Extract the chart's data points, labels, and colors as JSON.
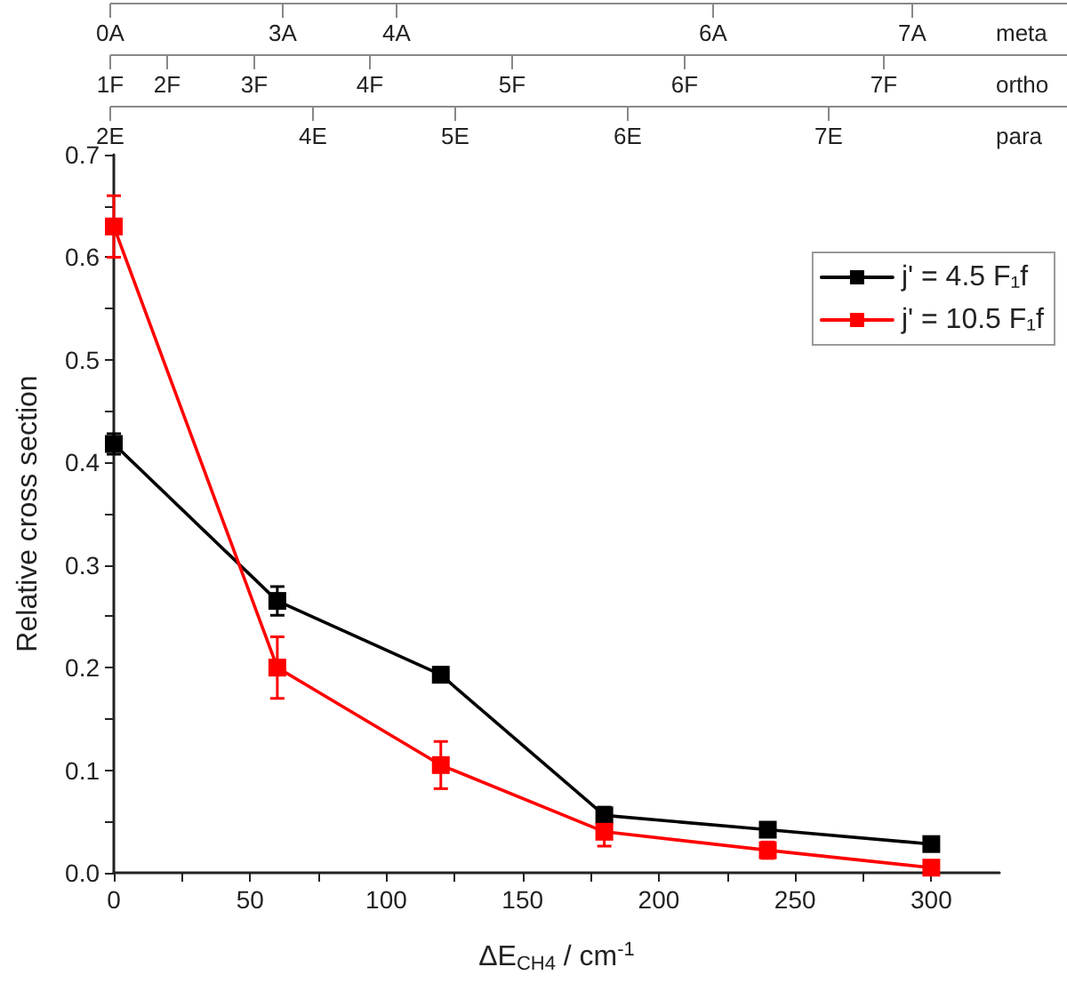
{
  "chart_data": {
    "type": "line",
    "xlabel": "ΔE$_{CH4}$ / cm$^{-1}$",
    "ylabel": "Relative cross section",
    "x": [
      0,
      60,
      120,
      180,
      240,
      300
    ],
    "series": [
      {
        "name": "j' = 4.5 F₁f",
        "color": "#000000",
        "values": [
          0.418,
          0.265,
          0.193,
          0.056,
          0.042,
          0.028
        ],
        "errors": [
          0.01,
          0.014,
          0.007,
          0.008,
          0.005,
          0.005
        ]
      },
      {
        "name": "j' = 10.5 F₁f",
        "color": "#ff0000",
        "values": [
          0.63,
          0.2,
          0.105,
          0.04,
          0.022,
          0.005
        ],
        "errors": [
          0.03,
          0.03,
          0.023,
          0.014,
          0.008,
          0.003
        ]
      }
    ],
    "xlim": [
      0,
      325
    ],
    "xticks": [
      0,
      {
        "value": 25,
        "label": null
      },
      50,
      {
        "value": 75,
        "label": null
      },
      100,
      {
        "value": 125,
        "label": null
      },
      150,
      {
        "value": 175,
        "label": null
      },
      200,
      {
        "value": 225,
        "label": null
      },
      250,
      {
        "value": 275,
        "label": null
      },
      300
    ],
    "ylim": [
      0,
      0.7
    ],
    "yticks": [
      {
        "value": 0,
        "label": "0.0"
      },
      {
        "value": 0.05,
        "label": null
      },
      0.1,
      {
        "value": 0.15,
        "label": null
      },
      0.2,
      {
        "value": 0.25,
        "label": null
      },
      0.3,
      {
        "value": 0.35,
        "label": null
      },
      0.4,
      {
        "value": 0.45,
        "label": null
      },
      0.5,
      {
        "value": 0.55,
        "label": null
      },
      0.6,
      {
        "value": 0.65,
        "label": null
      },
      0.7
    ],
    "annotations": [
      "meta",
      "0A",
      "3A",
      "4A",
      "6A",
      "7A",
      "ortho",
      "1F",
      "2F",
      "3F",
      "4F",
      "5F",
      "6F",
      "7F",
      "para",
      "2E",
      "4E",
      "5E",
      "6E",
      "7E"
    ],
    "marker": "square",
    "line_style": "solid",
    "legend": "top right",
    "grid": false
  }
}
